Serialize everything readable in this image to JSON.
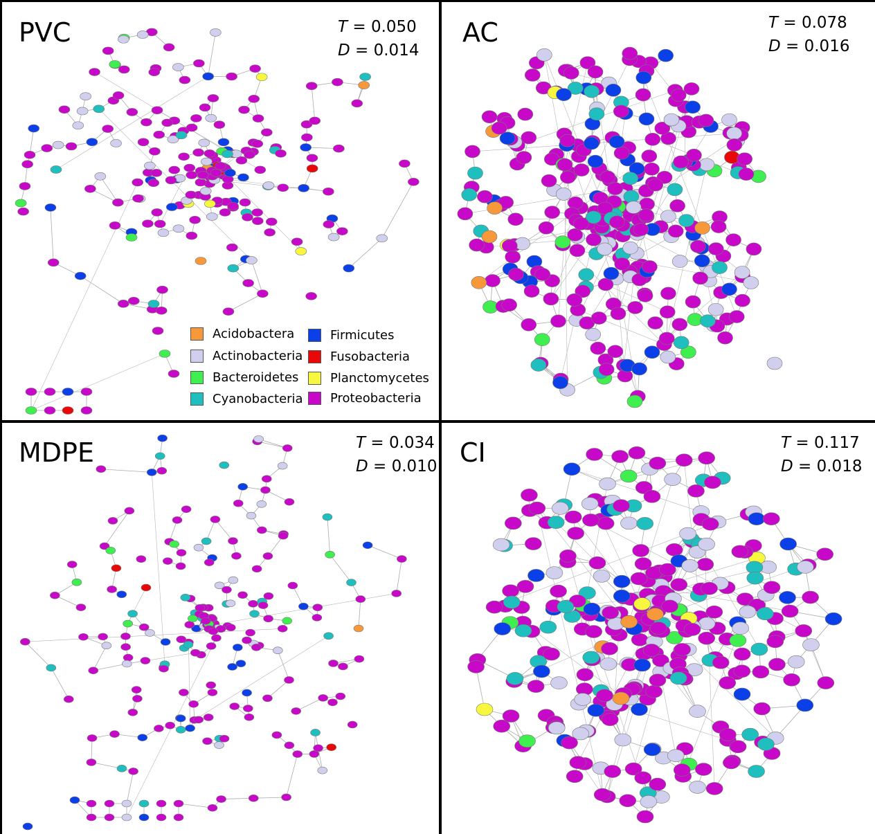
{
  "colors": {
    "Acidobactera": "#f7983a",
    "Actinobacteria": "#d0d0ee",
    "Bacteroidetes": "#3fef4f",
    "Cyanobacteria": "#1fbfbf",
    "Firmicutes": "#0b3fe8",
    "Fusobacteria": "#e80808",
    "Planctomycetes": "#f7f740",
    "Proteobacteria": "#c808c8"
  },
  "legend": {
    "left": [
      "Acidobactera",
      "Actinobacteria",
      "Bacteroidetes",
      "Cyanobacteria"
    ],
    "right": [
      "Firmicutes",
      "Fusobacteria",
      "Planctomycetes",
      "Proteobacteria"
    ]
  },
  "panels": [
    {
      "id": "pvc",
      "title": "PVC",
      "t_label": "T",
      "t_value": "= 0.050",
      "d_label": "D",
      "d_value": "= 0.014"
    },
    {
      "id": "ac",
      "title": "AC",
      "t_label": "T",
      "t_value": "= 0.078",
      "d_label": "D",
      "d_value": "= 0.016"
    },
    {
      "id": "mdpe",
      "title": "MDPE",
      "t_label": "T",
      "t_value": "= 0.034",
      "d_label": "D",
      "d_value": "= 0.010"
    },
    {
      "id": "ci",
      "title": "CI",
      "t_label": "T",
      "t_value": "= 0.117",
      "d_label": "D",
      "d_value": "= 0.018"
    }
  ]
}
